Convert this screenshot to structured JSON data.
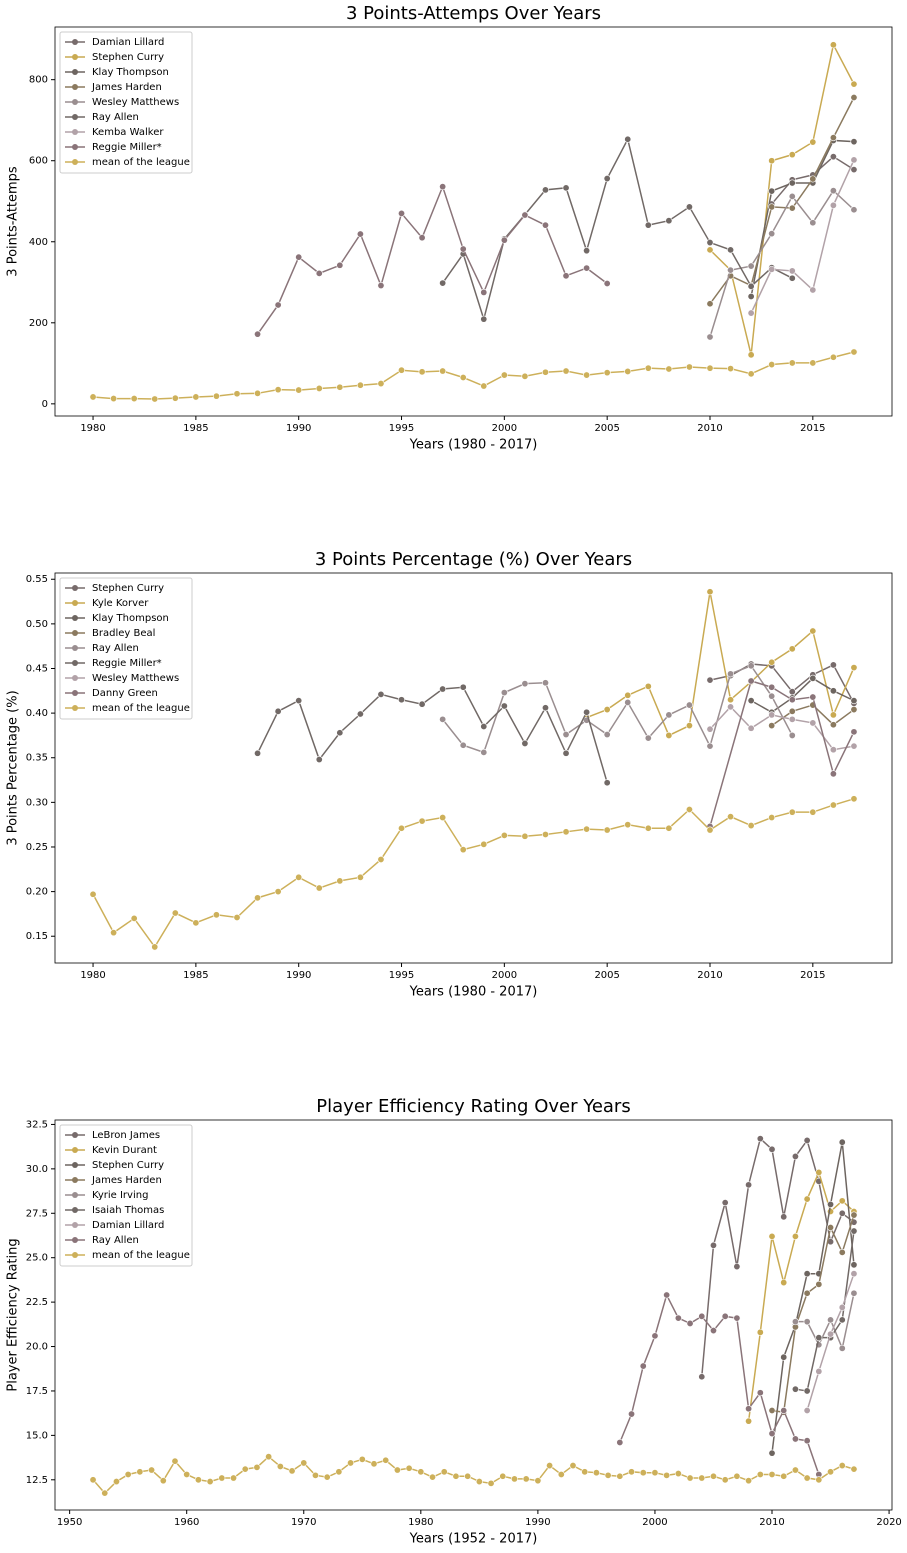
{
  "chart_data": [
    {
      "type": "line",
      "title": "3 Points-Attemps Over Years",
      "xlabel": "Years (1980 - 2017)",
      "ylabel": "3 Points-Attemps",
      "xlim": [
        1978.15,
        2018.85
      ],
      "ylim": [
        -30,
        930
      ],
      "xticks": [
        1980,
        1985,
        1990,
        1995,
        2000,
        2005,
        2010,
        2015
      ],
      "yticks": [
        0,
        200,
        400,
        600,
        800
      ],
      "legend": "upper left",
      "series": [
        {
          "name": "Damian Lillard",
          "color": "#776b6b",
          "x": [
            2013,
            2014,
            2015,
            2016,
            2017
          ],
          "values": [
            493,
            553,
            565,
            610,
            578
          ]
        },
        {
          "name": "Stephen Curry",
          "color": "#c9aa52",
          "x": [
            2010,
            2011,
            2012,
            2013,
            2014,
            2015,
            2016,
            2017
          ],
          "values": [
            380,
            330,
            121,
            600,
            615,
            646,
            886,
            789
          ]
        },
        {
          "name": "Klay Thompson",
          "color": "#6d6560",
          "x": [
            2012,
            2013,
            2014,
            2015,
            2016,
            2017
          ],
          "values": [
            265,
            525,
            545,
            545,
            650,
            647
          ]
        },
        {
          "name": "James Harden",
          "color": "#8b7a5f",
          "x": [
            2010,
            2011,
            2012,
            2013,
            2014,
            2015,
            2016,
            2017
          ],
          "values": [
            247,
            316,
            292,
            486,
            483,
            555,
            657,
            756
          ]
        },
        {
          "name": "Wesley Matthews",
          "color": "#9a8e90",
          "x": [
            2010,
            2011,
            2012,
            2013,
            2014,
            2015,
            2016,
            2017
          ],
          "values": [
            165,
            330,
            340,
            420,
            512,
            447,
            526,
            479
          ]
        },
        {
          "name": "Ray Allen",
          "color": "#716966",
          "x": [
            1997,
            1998,
            1999,
            2000,
            2001,
            2002,
            2003,
            2004,
            2005,
            2006,
            2007,
            2008,
            2009,
            2010,
            2011,
            2012,
            2013,
            2014
          ],
          "values": [
            298,
            370,
            209,
            407,
            467,
            528,
            533,
            378,
            556,
            653,
            441,
            452,
            486,
            398,
            380,
            290,
            336,
            310
          ]
        },
        {
          "name": "Kemba Walker",
          "color": "#b2a2a8",
          "x": [
            2012,
            2013,
            2014,
            2015,
            2016,
            2017
          ],
          "values": [
            224,
            332,
            328,
            281,
            490,
            602
          ]
        },
        {
          "name": "Reggie Miller*",
          "color": "#8a7479",
          "x": [
            1988,
            1989,
            1990,
            1991,
            1992,
            1993,
            1994,
            1995,
            1996,
            1997,
            1998,
            1999,
            2000,
            2001,
            2002,
            2003,
            2004,
            2005
          ],
          "values": [
            172,
            244,
            362,
            322,
            342,
            419,
            292,
            470,
            410,
            536,
            382,
            275,
            404,
            466,
            441,
            316,
            335,
            297
          ]
        },
        {
          "name": "mean of the league",
          "color": "#cdb05a",
          "x": [
            1980,
            1981,
            1982,
            1983,
            1984,
            1985,
            1986,
            1987,
            1988,
            1989,
            1990,
            1991,
            1992,
            1993,
            1994,
            1995,
            1996,
            1997,
            1998,
            1999,
            2000,
            2001,
            2002,
            2003,
            2004,
            2005,
            2006,
            2007,
            2008,
            2009,
            2010,
            2011,
            2012,
            2013,
            2014,
            2015,
            2016,
            2017
          ],
          "values": [
            17,
            13,
            13,
            12,
            14,
            17,
            19,
            25,
            26,
            35,
            34,
            38,
            41,
            46,
            50,
            83,
            79,
            81,
            65,
            44,
            71,
            68,
            78,
            81,
            71,
            77,
            80,
            88,
            86,
            91,
            88,
            87,
            74,
            97,
            101,
            101,
            115,
            128
          ]
        }
      ]
    },
    {
      "type": "line",
      "title": "3 Points Percentage (%) Over Years",
      "xlabel": "Years (1980 - 2017)",
      "ylabel": "3 Points Percentage (%)",
      "xlim": [
        1978.15,
        2018.85
      ],
      "ylim": [
        0.12,
        0.557
      ],
      "xticks": [
        1980,
        1985,
        1990,
        1995,
        2000,
        2005,
        2010,
        2015
      ],
      "yticks": [
        0.15,
        {
          "value": 0.2,
          "label": "0.20"
        },
        0.25,
        {
          "value": 0.3,
          "label": "0.30"
        },
        0.35,
        {
          "value": 0.4,
          "label": "0.40"
        },
        0.45,
        {
          "value": 0.5,
          "label": "0.50"
        },
        0.55
      ],
      "legend": "upper left",
      "series": [
        {
          "name": "Stephen Curry",
          "color": "#776b6b",
          "x": [
            2010,
            2011,
            2012,
            2013,
            2014,
            2015,
            2016,
            2017
          ],
          "values": [
            0.437,
            0.442,
            0.455,
            0.453,
            0.424,
            0.443,
            0.454,
            0.411
          ]
        },
        {
          "name": "Kyle Korver",
          "color": "#c9aa52",
          "x": [
            2004,
            2005,
            2006,
            2007,
            2008,
            2009,
            2010,
            2011,
            2012,
            2013,
            2014,
            2015,
            2016,
            2017
          ],
          "values": [
            0.395,
            0.404,
            0.42,
            0.43,
            0.375,
            0.386,
            0.536,
            0.415,
            0.435,
            0.457,
            0.472,
            0.492,
            0.398,
            0.451
          ]
        },
        {
          "name": "Klay Thompson",
          "color": "#6d6560",
          "x": [
            2012,
            2013,
            2014,
            2015,
            2016,
            2017
          ],
          "values": [
            0.414,
            0.401,
            0.417,
            0.439,
            0.425,
            0.414
          ]
        },
        {
          "name": "Bradley Beal",
          "color": "#8b7a5f",
          "x": [
            2013,
            2014,
            2015,
            2016,
            2017
          ],
          "values": [
            0.386,
            0.402,
            0.409,
            0.387,
            0.404
          ]
        },
        {
          "name": "Ray Allen",
          "color": "#9a8e90",
          "x": [
            1997,
            1998,
            1999,
            2000,
            2001,
            2002,
            2003,
            2004,
            2005,
            2006,
            2007,
            2008,
            2009,
            2010,
            2011,
            2012,
            2013,
            2014
          ],
          "values": [
            0.393,
            0.364,
            0.356,
            0.423,
            0.433,
            0.434,
            0.376,
            0.392,
            0.376,
            0.412,
            0.372,
            0.398,
            0.409,
            0.363,
            0.444,
            0.453,
            0.419,
            0.375
          ]
        },
        {
          "name": "Reggie Miller*",
          "color": "#716966",
          "x": [
            1988,
            1989,
            1990,
            1991,
            1992,
            1993,
            1994,
            1995,
            1996,
            1997,
            1998,
            1999,
            2000,
            2001,
            2002,
            2003,
            2004,
            2005
          ],
          "values": [
            0.355,
            0.402,
            0.414,
            0.348,
            0.378,
            0.399,
            0.421,
            0.415,
            0.41,
            0.427,
            0.429,
            0.385,
            0.408,
            0.366,
            0.406,
            0.355,
            0.401,
            0.322
          ]
        },
        {
          "name": "Wesley Matthews",
          "color": "#b2a2a8",
          "x": [
            2010,
            2011,
            2012,
            2013,
            2014,
            2015,
            2016,
            2017
          ],
          "values": [
            0.382,
            0.407,
            0.383,
            0.398,
            0.393,
            0.389,
            0.359,
            0.363
          ]
        },
        {
          "name": "Danny Green",
          "color": "#8a7479",
          "x": [
            2010,
            2012,
            2013,
            2014,
            2015,
            2016,
            2017
          ],
          "values": [
            0.273,
            0.436,
            0.429,
            0.415,
            0.418,
            0.332,
            0.379
          ]
        },
        {
          "name": "mean of the league",
          "color": "#cdb05a",
          "x": [
            1980,
            1981,
            1982,
            1983,
            1984,
            1985,
            1986,
            1987,
            1988,
            1989,
            1990,
            1991,
            1992,
            1993,
            1994,
            1995,
            1996,
            1997,
            1998,
            1999,
            2000,
            2001,
            2002,
            2003,
            2004,
            2005,
            2006,
            2007,
            2008,
            2009,
            2010,
            2011,
            2012,
            2013,
            2014,
            2015,
            2016,
            2017
          ],
          "values": [
            0.197,
            0.154,
            0.17,
            0.138,
            0.176,
            0.165,
            0.174,
            0.171,
            0.193,
            0.2,
            0.216,
            0.204,
            0.212,
            0.216,
            0.236,
            0.271,
            0.279,
            0.283,
            0.247,
            0.253,
            0.263,
            0.262,
            0.264,
            0.267,
            0.27,
            0.269,
            0.275,
            0.271,
            0.271,
            0.292,
            0.269,
            0.284,
            0.274,
            0.283,
            0.289,
            0.289,
            0.297,
            0.304
          ]
        }
      ]
    },
    {
      "type": "line",
      "title": "Player Efficiency Rating Over Years",
      "xlabel": "Years (1952 - 2017)",
      "ylabel": "Player Efficiency Rating",
      "xlim": [
        1948.75,
        2020.25
      ],
      "ylim": [
        10.8,
        32.75
      ],
      "xticks": [
        1950,
        1960,
        1970,
        1980,
        1990,
        2000,
        2010,
        2020
      ],
      "yticks": [
        12.5,
        {
          "value": 15,
          "label": "15.0"
        },
        17.5,
        {
          "value": 20,
          "label": "20.0"
        },
        22.5,
        {
          "value": 25,
          "label": "25.0"
        },
        27.5,
        {
          "value": 30,
          "label": "30.0"
        },
        32.5
      ],
      "legend": "upper left",
      "series": [
        {
          "name": "LeBron James",
          "color": "#776b6b",
          "x": [
            2004,
            2005,
            2006,
            2007,
            2008,
            2009,
            2010,
            2011,
            2012,
            2013,
            2014,
            2015,
            2016,
            2017
          ],
          "values": [
            18.3,
            25.7,
            28.1,
            24.5,
            29.1,
            31.7,
            31.1,
            27.3,
            30.7,
            31.6,
            29.3,
            25.9,
            27.5,
            27.0
          ]
        },
        {
          "name": "Kevin Durant",
          "color": "#c9aa52",
          "x": [
            2008,
            2009,
            2010,
            2011,
            2012,
            2013,
            2014,
            2015,
            2016,
            2017
          ],
          "values": [
            15.8,
            20.8,
            26.2,
            23.6,
            26.2,
            28.3,
            29.8,
            27.6,
            28.2,
            27.6
          ]
        },
        {
          "name": "Stephen Curry",
          "color": "#6d6560",
          "x": [
            2010,
            2011,
            2012,
            2013,
            2014,
            2015,
            2016,
            2017
          ],
          "values": [
            14.0,
            19.4,
            21.2,
            24.1,
            24.1,
            28.0,
            31.5,
            24.6
          ]
        },
        {
          "name": "James Harden",
          "color": "#8b7a5f",
          "x": [
            2010,
            2011,
            2012,
            2013,
            2014,
            2015,
            2016,
            2017
          ],
          "values": [
            16.4,
            16.3,
            21.1,
            23.0,
            23.5,
            26.7,
            25.3,
            27.4
          ]
        },
        {
          "name": "Kyrie Irving",
          "color": "#9a8e90",
          "x": [
            2012,
            2013,
            2014,
            2015,
            2016,
            2017
          ],
          "values": [
            21.4,
            21.4,
            20.1,
            21.5,
            19.9,
            23.0
          ]
        },
        {
          "name": "Isaiah Thomas",
          "color": "#716966",
          "x": [
            2012,
            2013,
            2014,
            2015,
            2016,
            2017
          ],
          "values": [
            17.6,
            17.5,
            20.5,
            20.5,
            21.5,
            26.5
          ]
        },
        {
          "name": "Damian Lillard",
          "color": "#b2a2a8",
          "x": [
            2013,
            2014,
            2015,
            2016,
            2017
          ],
          "values": [
            16.4,
            18.6,
            20.7,
            22.2,
            24.1
          ]
        },
        {
          "name": "Ray Allen",
          "color": "#8a7479",
          "x": [
            1997,
            1998,
            1999,
            2000,
            2001,
            2002,
            2003,
            2004,
            2005,
            2006,
            2007,
            2008,
            2009,
            2010,
            2011,
            2012,
            2013,
            2014
          ],
          "values": [
            14.6,
            16.2,
            18.9,
            20.6,
            22.9,
            21.6,
            21.3,
            21.7,
            20.9,
            21.7,
            21.6,
            16.5,
            17.4,
            15.1,
            16.4,
            14.8,
            14.7,
            12.8
          ]
        },
        {
          "name": "mean of the league",
          "color": "#cdb05a",
          "x": [
            1952,
            1953,
            1954,
            1955,
            1956,
            1957,
            1958,
            1959,
            1960,
            1961,
            1962,
            1963,
            1964,
            1965,
            1966,
            1967,
            1968,
            1969,
            1970,
            1971,
            1972,
            1973,
            1974,
            1975,
            1976,
            1977,
            1978,
            1979,
            1980,
            1981,
            1982,
            1983,
            1984,
            1985,
            1986,
            1987,
            1988,
            1989,
            1990,
            1991,
            1992,
            1993,
            1994,
            1995,
            1996,
            1997,
            1998,
            1999,
            2000,
            2001,
            2002,
            2003,
            2004,
            2005,
            2006,
            2007,
            2008,
            2009,
            2010,
            2011,
            2012,
            2013,
            2014,
            2015,
            2016,
            2017
          ],
          "values": [
            12.5,
            11.75,
            12.4,
            12.8,
            12.95,
            13.05,
            12.45,
            13.55,
            12.8,
            12.5,
            12.4,
            12.6,
            12.6,
            13.1,
            13.2,
            13.8,
            13.25,
            13.0,
            13.45,
            12.75,
            12.65,
            12.95,
            13.45,
            13.65,
            13.4,
            13.6,
            13.05,
            13.15,
            12.95,
            12.65,
            12.95,
            12.7,
            12.7,
            12.4,
            12.3,
            12.7,
            12.55,
            12.55,
            12.45,
            13.3,
            12.8,
            13.3,
            12.95,
            12.9,
            12.75,
            12.7,
            12.95,
            12.9,
            12.9,
            12.75,
            12.85,
            12.6,
            12.6,
            12.7,
            12.5,
            12.7,
            12.45,
            12.8,
            12.8,
            12.7,
            13.05,
            12.6,
            12.5,
            12.95,
            13.3,
            13.1
          ]
        }
      ]
    }
  ]
}
